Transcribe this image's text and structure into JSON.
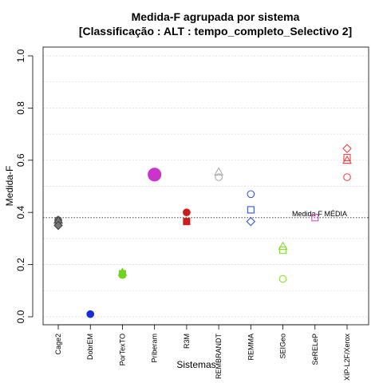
{
  "chart_data": {
    "type": "scatter",
    "title_line1": "Medida-F agrupada por sistema",
    "title_line2": "[Classificação : ALT : tempo_completo_Selectivo 2]",
    "xlabel": "Sistemas",
    "ylabel": "Medida-F",
    "ylim": [
      0.0,
      1.0
    ],
    "yticks": [
      "0.0",
      "0.2",
      "0.4",
      "0.6",
      "0.8",
      "1.0"
    ],
    "grid": "horizontal dotted",
    "categories": [
      "Cage2",
      "DobrEM",
      "PorTexTO",
      "Priberam",
      "R3M",
      "REMBRANDT",
      "REMMA",
      "SEIGeo",
      "SeRELeP",
      "XIP-L2F/Xerox"
    ],
    "reference_line": {
      "label": "Medida-F MÉDIA",
      "value": 0.38
    },
    "series": [
      {
        "category": "Cage2",
        "color": "#777777",
        "points": [
          {
            "shape": "circle",
            "filled": true,
            "y": 0.37
          },
          {
            "shape": "triangle",
            "filled": true,
            "y": 0.37
          },
          {
            "shape": "diamond",
            "filled": true,
            "y": 0.35
          }
        ]
      },
      {
        "category": "DobrEM",
        "color": "#1630d6",
        "points": [
          {
            "shape": "circle",
            "filled": true,
            "y": 0.01
          }
        ]
      },
      {
        "category": "PorTexTO",
        "color": "#6fd41c",
        "points": [
          {
            "shape": "triangle",
            "filled": true,
            "y": 0.17
          },
          {
            "shape": "square",
            "filled": true,
            "y": 0.165
          },
          {
            "shape": "circle",
            "filled": true,
            "y": 0.16
          }
        ]
      },
      {
        "category": "Priberam",
        "color": "#cc33cc",
        "points": [
          {
            "shape": "circle",
            "filled": true,
            "large": true,
            "y": 0.545
          }
        ]
      },
      {
        "category": "R3M",
        "color": "#cc1c1c",
        "points": [
          {
            "shape": "circle",
            "filled": true,
            "y": 0.4
          },
          {
            "shape": "square",
            "filled": true,
            "y": 0.365
          }
        ]
      },
      {
        "category": "REMBRANDT",
        "color": "#aaaaaa",
        "points": [
          {
            "shape": "triangle",
            "filled": false,
            "y": 0.555
          },
          {
            "shape": "circle",
            "filled": false,
            "y": 0.535
          }
        ]
      },
      {
        "category": "REMMA",
        "color": "#3355dd",
        "points": [
          {
            "shape": "circle",
            "filled": false,
            "y": 0.47
          },
          {
            "shape": "square",
            "filled": false,
            "y": 0.41
          },
          {
            "shape": "diamond",
            "filled": false,
            "y": 0.365
          }
        ]
      },
      {
        "category": "SEIGeo",
        "color": "#88dd33",
        "points": [
          {
            "shape": "triangle",
            "filled": false,
            "y": 0.27
          },
          {
            "shape": "square",
            "filled": false,
            "y": 0.255
          },
          {
            "shape": "circle",
            "filled": false,
            "y": 0.145
          }
        ]
      },
      {
        "category": "SeRELeP",
        "color": "#cc55cc",
        "points": [
          {
            "shape": "square",
            "filled": false,
            "y": 0.38
          }
        ]
      },
      {
        "category": "XIP-L2F/Xerox",
        "color": "#ee4444",
        "points": [
          {
            "shape": "diamond",
            "filled": false,
            "y": 0.645
          },
          {
            "shape": "square",
            "filled": false,
            "y": 0.61
          },
          {
            "shape": "triangle",
            "filled": false,
            "y": 0.6
          },
          {
            "shape": "circle",
            "filled": false,
            "y": 0.535
          }
        ]
      }
    ]
  }
}
